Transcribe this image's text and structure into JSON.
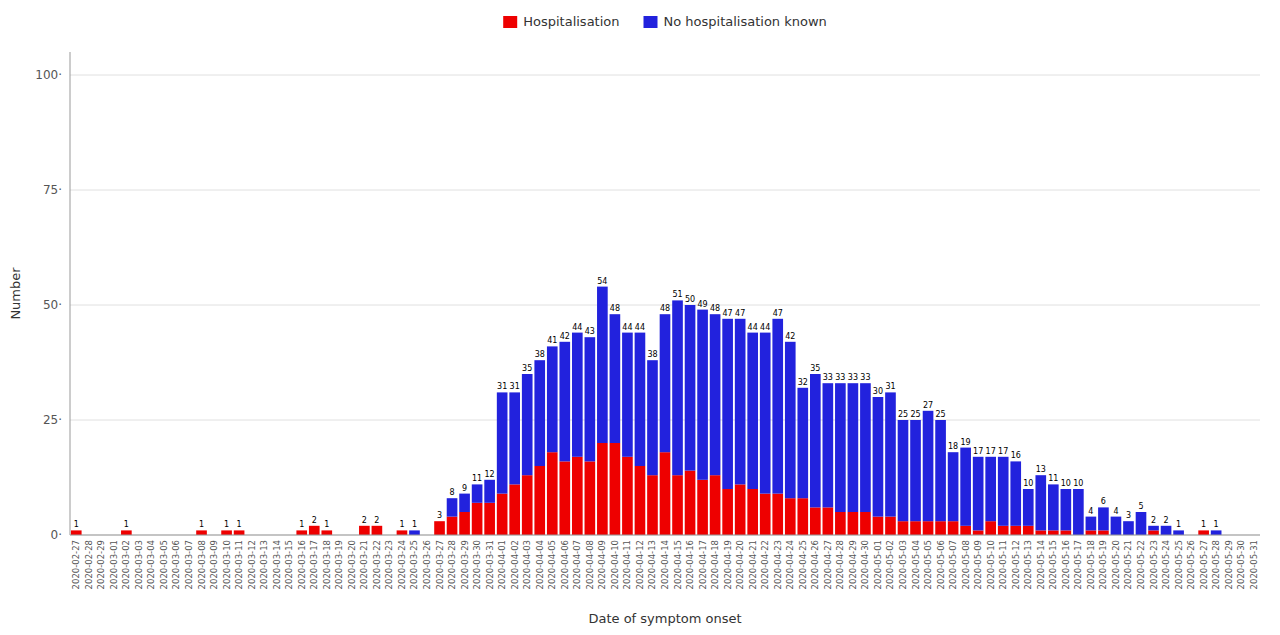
{
  "chart_data": {
    "type": "bar",
    "stacked": true,
    "grid": true,
    "legend": "top",
    "xlabel": "Date of symptom onset",
    "ylabel": "Number",
    "categories": [
      "2020-02-27",
      "2020-02-28",
      "2020-02-29",
      "2020-03-01",
      "2020-03-02",
      "2020-03-03",
      "2020-03-04",
      "2020-03-05",
      "2020-03-06",
      "2020-03-07",
      "2020-03-08",
      "2020-03-09",
      "2020-03-10",
      "2020-03-11",
      "2020-03-12",
      "2020-03-13",
      "2020-03-14",
      "2020-03-15",
      "2020-03-16",
      "2020-03-17",
      "2020-03-18",
      "2020-03-19",
      "2020-03-20",
      "2020-03-21",
      "2020-03-22",
      "2020-03-23",
      "2020-03-24",
      "2020-03-25",
      "2020-03-26",
      "2020-03-27",
      "2020-03-28",
      "2020-03-29",
      "2020-03-30",
      "2020-03-31",
      "2020-04-01",
      "2020-04-02",
      "2020-04-03",
      "2020-04-04",
      "2020-04-05",
      "2020-04-06",
      "2020-04-07",
      "2020-04-08",
      "2020-04-09",
      "2020-04-10",
      "2020-04-11",
      "2020-04-12",
      "2020-04-13",
      "2020-04-14",
      "2020-04-15",
      "2020-04-16",
      "2020-04-17",
      "2020-04-18",
      "2020-04-19",
      "2020-04-20",
      "2020-04-21",
      "2020-04-22",
      "2020-04-23",
      "2020-04-24",
      "2020-04-25",
      "2020-04-26",
      "2020-04-27",
      "2020-04-28",
      "2020-04-29",
      "2020-04-30",
      "2020-05-01",
      "2020-05-02",
      "2020-05-03",
      "2020-05-04",
      "2020-05-05",
      "2020-05-06",
      "2020-05-07",
      "2020-05-08",
      "2020-05-09",
      "2020-05-10",
      "2020-05-11",
      "2020-05-12",
      "2020-05-13",
      "2020-05-14",
      "2020-05-15",
      "2020-05-16",
      "2020-05-17",
      "2020-05-18",
      "2020-05-19",
      "2020-05-20",
      "2020-05-21",
      "2020-05-22",
      "2020-05-23",
      "2020-05-24",
      "2020-05-25",
      "2020-05-26",
      "2020-05-27",
      "2020-05-28",
      "2020-05-29",
      "2020-05-30",
      "2020-05-31"
    ],
    "series": [
      {
        "name": "Hospitalisation",
        "color": "#EE0000",
        "values": [
          1,
          0,
          0,
          0,
          1,
          0,
          0,
          0,
          0,
          0,
          1,
          0,
          1,
          1,
          0,
          0,
          0,
          0,
          1,
          2,
          1,
          0,
          0,
          2,
          2,
          0,
          1,
          0,
          0,
          3,
          4,
          5,
          7,
          7,
          9,
          11,
          13,
          15,
          18,
          16,
          17,
          16,
          20,
          20,
          17,
          15,
          13,
          18,
          13,
          14,
          12,
          13,
          10,
          11,
          10,
          9,
          9,
          8,
          8,
          6,
          6,
          5,
          5,
          5,
          4,
          4,
          3,
          3,
          3,
          3,
          3,
          2,
          1,
          3,
          2,
          2,
          2,
          1,
          1,
          1,
          0,
          1,
          1,
          0,
          0,
          0,
          1,
          0,
          0,
          0,
          1,
          0,
          0,
          0,
          0
        ]
      },
      {
        "name": "No hospitalisation known",
        "color": "#2222DD",
        "values": [
          0,
          0,
          0,
          0,
          0,
          0,
          0,
          0,
          0,
          0,
          0,
          0,
          0,
          0,
          0,
          0,
          0,
          0,
          0,
          0,
          0,
          0,
          0,
          0,
          0,
          0,
          0,
          1,
          0,
          0,
          4,
          4,
          4,
          5,
          22,
          20,
          22,
          23,
          23,
          26,
          27,
          27,
          34,
          28,
          27,
          29,
          25,
          30,
          38,
          36,
          37,
          35,
          37,
          36,
          34,
          35,
          38,
          34,
          24,
          29,
          27,
          28,
          28,
          28,
          26,
          27,
          22,
          22,
          24,
          22,
          15,
          17,
          16,
          14,
          15,
          14,
          8,
          12,
          10,
          9,
          10,
          3,
          5,
          4,
          3,
          5,
          1,
          2,
          1,
          0,
          0,
          1,
          0,
          0,
          0
        ]
      }
    ],
    "totals": [
      1,
      null,
      null,
      null,
      1,
      null,
      null,
      null,
      null,
      null,
      1,
      null,
      1,
      1,
      null,
      null,
      null,
      null,
      1,
      2,
      1,
      null,
      null,
      2,
      2,
      null,
      1,
      1,
      null,
      3,
      8,
      9,
      11,
      12,
      31,
      31,
      35,
      38,
      41,
      42,
      44,
      43,
      54,
      48,
      44,
      44,
      38,
      48,
      51,
      50,
      49,
      48,
      47,
      47,
      44,
      44,
      47,
      42,
      32,
      35,
      33,
      33,
      33,
      33,
      30,
      31,
      25,
      25,
      27,
      25,
      18,
      19,
      17,
      17,
      17,
      16,
      10,
      13,
      11,
      10,
      10,
      4,
      6,
      4,
      3,
      5,
      2,
      2,
      1,
      null,
      1,
      1,
      null,
      null,
      null
    ],
    "ylim": [
      0,
      105
    ],
    "yticks": [
      {
        "value": 0,
        "label": "0·"
      },
      {
        "value": 25,
        "label": "25·"
      },
      {
        "value": 50,
        "label": "50·"
      },
      {
        "value": 75,
        "label": "75·"
      },
      {
        "value": 100,
        "label": "100·"
      }
    ]
  }
}
